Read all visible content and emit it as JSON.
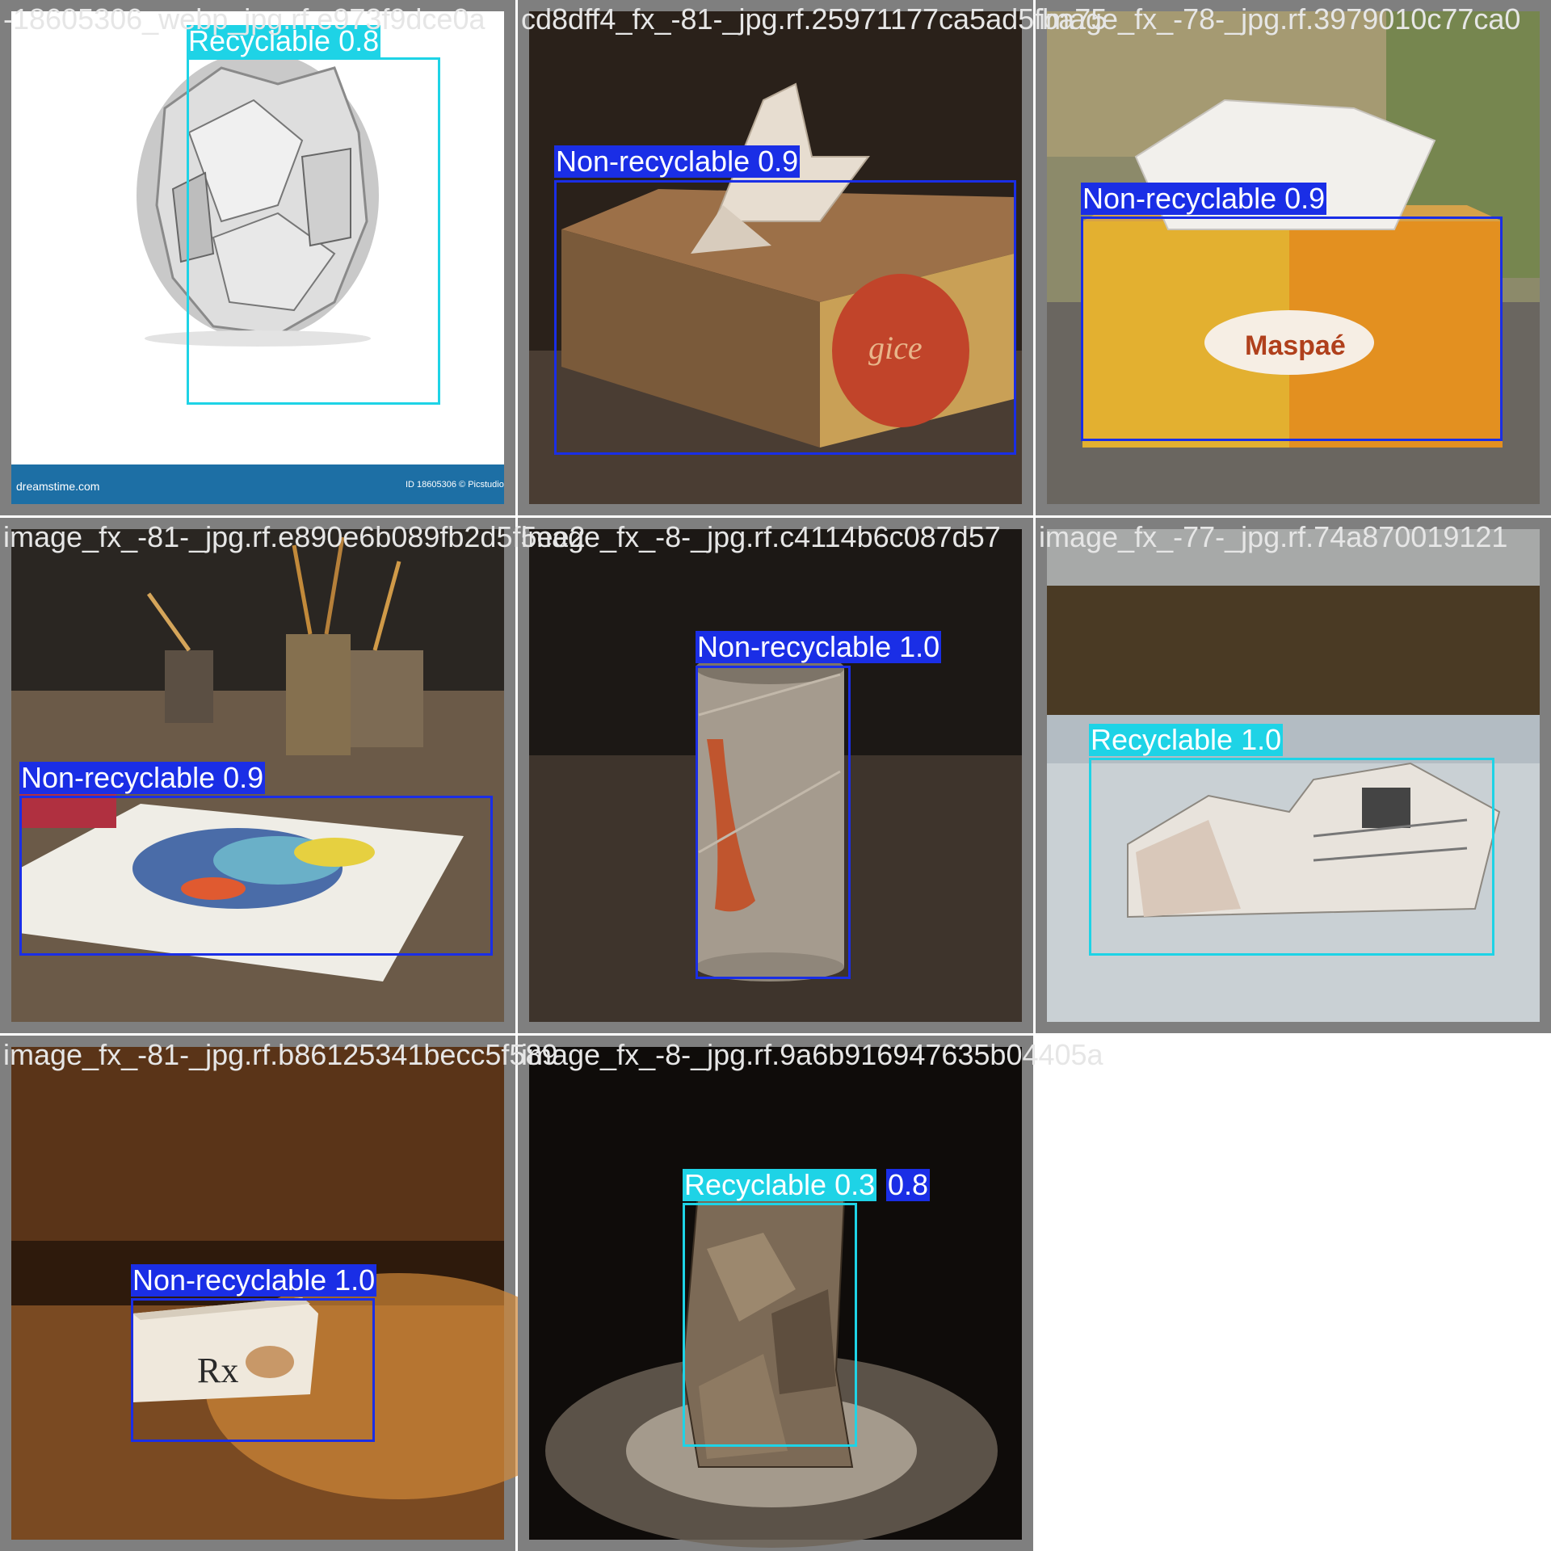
{
  "tiles": [
    {
      "filename": "-18605306_webp_jpg.rf.e973f9dce0a",
      "detections": [
        {
          "label": "Recyclable 0.8",
          "class": "Recyclable",
          "confidence": 0.8
        }
      ],
      "watermark_left": "dreamstime.com",
      "watermark_right": "ID 18605306 © Picstudio"
    },
    {
      "filename": "cd8dff4_fx_-81-_jpg.rf.25971177ca5ad5fba75",
      "detections": [
        {
          "label": "Non-recyclable 0.9",
          "class": "Non-recyclable",
          "confidence": 0.9
        }
      ],
      "box_text": "gice"
    },
    {
      "filename": "image_fx_-78-_jpg.rf.3979010c77ca0",
      "detections": [
        {
          "label": "Non-recyclable 0.9",
          "class": "Non-recyclable",
          "confidence": 0.9
        }
      ],
      "box_text": "Maspaé"
    },
    {
      "filename": "image_fx_-81-_jpg.rf.e890e6b089fb2d5f5ee2",
      "detections": [
        {
          "label": "Non-recyclable 0.9",
          "class": "Non-recyclable",
          "confidence": 0.9
        }
      ]
    },
    {
      "filename": "image_fx_-8-_jpg.rf.c4114b6c087d57",
      "detections": [
        {
          "label": "Non-recyclable 1.0",
          "class": "Non-recyclable",
          "confidence": 1.0
        }
      ]
    },
    {
      "filename": "image_fx_-77-_jpg.rf.74a870019121",
      "detections": [
        {
          "label": "Recyclable 1.0",
          "class": "Recyclable",
          "confidence": 1.0
        }
      ]
    },
    {
      "filename": "image_fx_-81-_jpg.rf.b86125341becc5f589",
      "detections": [
        {
          "label": "Non-recyclable 1.0",
          "class": "Non-recyclable",
          "confidence": 1.0
        }
      ],
      "box_text": "Rx"
    },
    {
      "filename": "image_fx_-8-_jpg.rf.9a6b916947635b04405a",
      "detections": [
        {
          "label": "Recyclable 0.3",
          "class": "Recyclable",
          "confidence": 0.3
        },
        {
          "label": "0.8",
          "class": "Non-recyclable",
          "confidence": 0.8
        }
      ]
    }
  ],
  "colors": {
    "recyclable": "#1ed3e6",
    "non_recyclable": "#1a2ee6",
    "tile_frame": "#7f7f7f"
  }
}
